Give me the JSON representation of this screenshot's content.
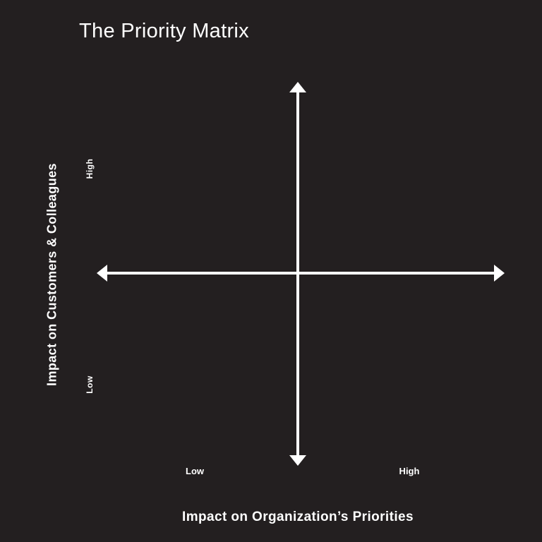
{
  "diagram": {
    "title": "The Priority Matrix",
    "x_axis": {
      "label": "Impact on Organization’s Priorities",
      "low_label": "Low",
      "high_label": "High"
    },
    "y_axis": {
      "label": "Impact on Customers & Colleagues",
      "low_label": "Low",
      "high_label": "High"
    },
    "colors": {
      "background": "#231f20",
      "foreground": "#ffffff"
    }
  }
}
